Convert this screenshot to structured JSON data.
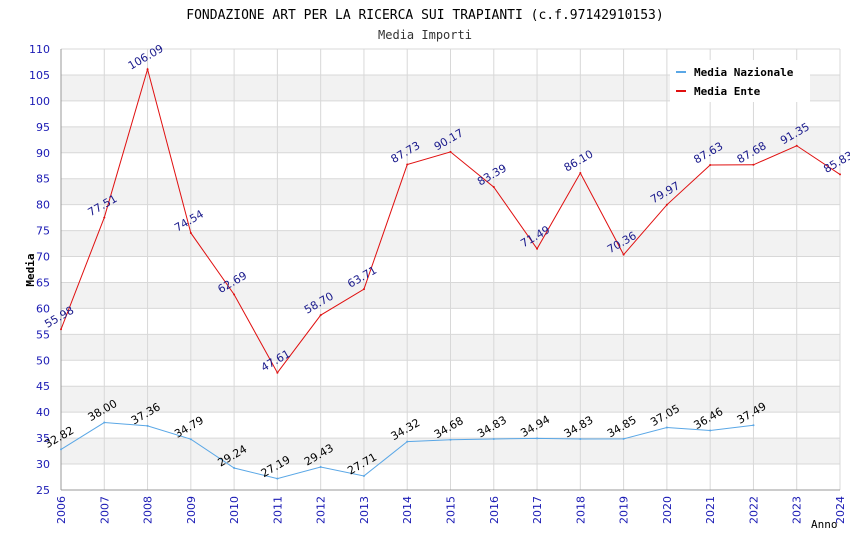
{
  "chart_data": {
    "type": "line",
    "title": "FONDAZIONE ART PER LA RICERCA SUI TRAPIANTI (c.f.97142910153)",
    "subtitle": "Media Importi",
    "xlabel": "Anno",
    "ylabel": "Media",
    "ylim": [
      25,
      110
    ],
    "ytick_step": 5,
    "categories": [
      "2006",
      "2007",
      "2008",
      "2009",
      "2010",
      "2011",
      "2012",
      "2013",
      "2014",
      "2015",
      "2016",
      "2017",
      "2018",
      "2019",
      "2020",
      "2021",
      "2022",
      "2023",
      "2024"
    ],
    "series": [
      {
        "name": "Media Nazionale",
        "color": "#5aa7e6",
        "label_color": "#000000",
        "values": [
          32.82,
          38.0,
          37.36,
          34.79,
          29.24,
          27.19,
          29.43,
          27.71,
          34.32,
          34.68,
          34.83,
          34.94,
          34.83,
          34.85,
          37.05,
          36.46,
          37.49,
          null,
          null
        ],
        "labels": [
          "32.82",
          "38.00",
          "37.36",
          "34.79",
          "29.24",
          "27.19",
          "29.43",
          "27.71",
          "34.32",
          "34.68",
          "34.83",
          "34.94",
          "34.83",
          "34.85",
          "37.05",
          "36.46",
          "37.49",
          null,
          null
        ]
      },
      {
        "name": "Media Ente",
        "color": "#e01010",
        "label_color": "#1a1a8c",
        "values": [
          55.98,
          77.51,
          106.09,
          74.54,
          62.69,
          47.61,
          58.7,
          63.71,
          87.73,
          90.17,
          83.39,
          71.49,
          86.1,
          70.36,
          79.97,
          87.63,
          87.68,
          91.35,
          85.83
        ],
        "labels": [
          "55.98",
          "77.51",
          "106.09",
          "74.54",
          "62.69",
          "47.61",
          "58.70",
          "63.71",
          "87.73",
          "90.17",
          "83.39",
          "71.49",
          "86.10",
          "70.36",
          "79.97",
          "87.63",
          "87.68",
          "91.35",
          "85.83"
        ]
      }
    ],
    "legend_position": "top-right",
    "colors": {
      "tick_label": "#1a1ab4",
      "band": "#f2f2f2",
      "grid": "#d8d8d8",
      "axis": "#999999"
    }
  }
}
